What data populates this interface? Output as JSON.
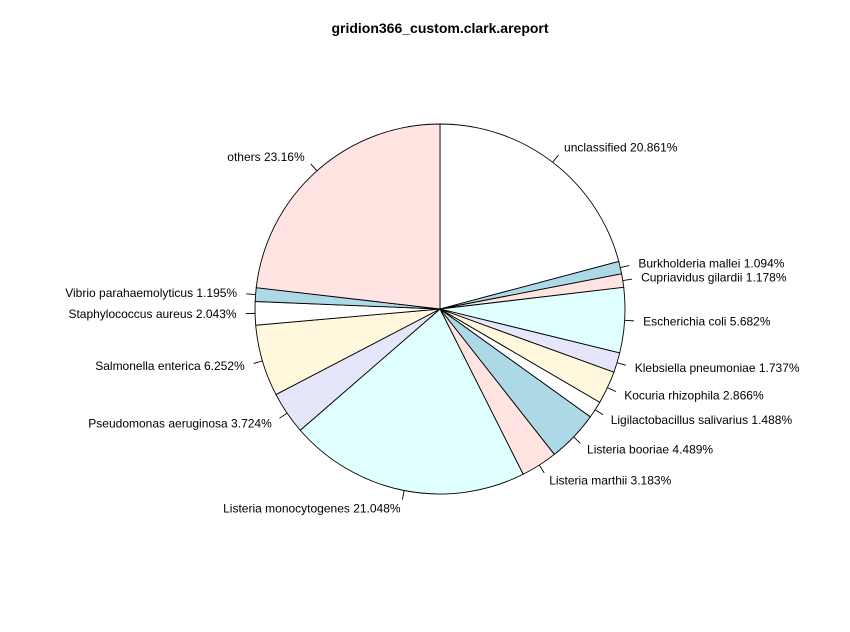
{
  "chart_data": {
    "type": "pie",
    "title": "gridion366_custom.clark.areport",
    "slices": [
      {
        "label": "unclassified 20.861%",
        "value": 20.861,
        "color": "#ffffff"
      },
      {
        "label": "Burkholderia mallei 1.094%",
        "value": 1.094,
        "color": "#add8e6"
      },
      {
        "label": "Cupriavidus gilardii 1.178%",
        "value": 1.178,
        "color": "#ffe4e1"
      },
      {
        "label": "Escherichia coli 5.682%",
        "value": 5.682,
        "color": "#e0ffff"
      },
      {
        "label": "Klebsiella pneumoniae 1.737%",
        "value": 1.737,
        "color": "#e6e6fa"
      },
      {
        "label": "Kocuria rhizophila 2.866%",
        "value": 2.866,
        "color": "#fff8dc"
      },
      {
        "label": "Ligilactobacillus salivarius 1.488%",
        "value": 1.488,
        "color": "#ffffff"
      },
      {
        "label": "Listeria booriae 4.489%",
        "value": 4.489,
        "color": "#add8e6"
      },
      {
        "label": "Listeria marthii 3.183%",
        "value": 3.183,
        "color": "#ffe4e1"
      },
      {
        "label": "Listeria monocytogenes 21.048%",
        "value": 21.048,
        "color": "#e0ffff"
      },
      {
        "label": "Pseudomonas aeruginosa 3.724%",
        "value": 3.724,
        "color": "#e6e6fa"
      },
      {
        "label": "Salmonella enterica 6.252%",
        "value": 6.252,
        "color": "#fff8dc"
      },
      {
        "label": "Staphylococcus aureus 2.043%",
        "value": 2.043,
        "color": "#ffffff"
      },
      {
        "label": "Vibrio parahaemolyticus 1.195%",
        "value": 1.195,
        "color": "#add8e6"
      },
      {
        "label": "others 23.16%",
        "value": 23.16,
        "color": "#ffe4e1"
      }
    ],
    "start": "12 o'clock",
    "direction": "clockwise",
    "legend": "none"
  }
}
